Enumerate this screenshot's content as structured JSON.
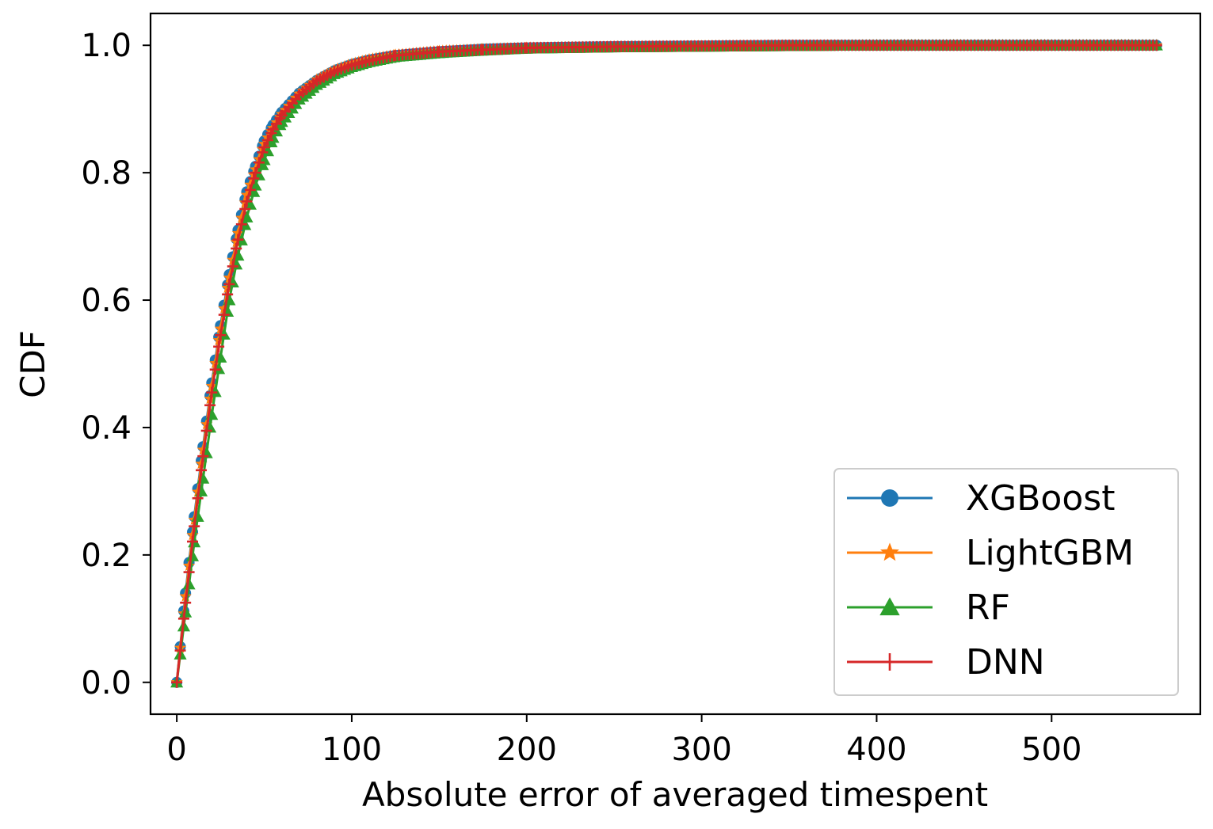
{
  "chart_data": {
    "type": "line",
    "xlabel": "Absolute error of averaged timespent",
    "ylabel": "CDF",
    "xlim": [
      -15,
      585
    ],
    "ylim": [
      -0.05,
      1.05
    ],
    "xticks": [
      0,
      100,
      200,
      300,
      400,
      500
    ],
    "xtick_labels": [
      "0",
      "100",
      "200",
      "300",
      "400",
      "500"
    ],
    "yticks": [
      0.0,
      0.2,
      0.4,
      0.6,
      0.8,
      1.0
    ],
    "ytick_labels": [
      "0.0",
      "0.2",
      "0.4",
      "0.6",
      "0.8",
      "1.0"
    ],
    "grid": false,
    "legend": "lower-right",
    "series": [
      {
        "name": "XGBoost",
        "color": "#1f77b4",
        "marker": "circle",
        "x": [
          0,
          5,
          10,
          15,
          20,
          25,
          30,
          35,
          40,
          45,
          50,
          55,
          60,
          70,
          80,
          90,
          100,
          110,
          125,
          150,
          175,
          200,
          250,
          300,
          350,
          400,
          450,
          500,
          560
        ],
        "y": [
          0.0,
          0.14,
          0.26,
          0.37,
          0.47,
          0.56,
          0.64,
          0.71,
          0.77,
          0.81,
          0.85,
          0.875,
          0.895,
          0.925,
          0.945,
          0.96,
          0.97,
          0.977,
          0.984,
          0.99,
          0.994,
          0.996,
          0.998,
          0.999,
          1.0,
          1.0,
          1.0,
          1.0,
          1.0
        ]
      },
      {
        "name": "LightGBM",
        "color": "#ff7f0e",
        "marker": "star",
        "x": [
          0,
          5,
          10,
          15,
          20,
          25,
          30,
          35,
          40,
          45,
          50,
          55,
          60,
          70,
          80,
          90,
          100,
          110,
          125,
          150,
          175,
          200,
          250,
          300,
          350,
          400,
          450,
          500,
          560
        ],
        "y": [
          0.0,
          0.135,
          0.255,
          0.365,
          0.465,
          0.555,
          0.635,
          0.705,
          0.765,
          0.805,
          0.845,
          0.87,
          0.892,
          0.924,
          0.946,
          0.961,
          0.971,
          0.978,
          0.985,
          0.991,
          0.994,
          0.996,
          0.998,
          0.999,
          1.0,
          1.0,
          1.0,
          1.0,
          1.0
        ]
      },
      {
        "name": "RF",
        "color": "#2ca02c",
        "marker": "triangle",
        "x": [
          0,
          5,
          10,
          15,
          20,
          25,
          30,
          35,
          40,
          45,
          50,
          55,
          60,
          70,
          80,
          90,
          100,
          110,
          125,
          150,
          175,
          200,
          250,
          300,
          350,
          400,
          450,
          500,
          560
        ],
        "y": [
          0.0,
          0.11,
          0.22,
          0.32,
          0.42,
          0.51,
          0.6,
          0.67,
          0.73,
          0.78,
          0.82,
          0.855,
          0.88,
          0.915,
          0.938,
          0.955,
          0.966,
          0.974,
          0.982,
          0.988,
          0.992,
          0.995,
          0.997,
          0.998,
          0.999,
          1.0,
          1.0,
          1.0,
          1.0
        ]
      },
      {
        "name": "DNN",
        "color": "#d62728",
        "marker": "plus",
        "x": [
          0,
          5,
          10,
          15,
          20,
          25,
          30,
          35,
          40,
          45,
          50,
          55,
          60,
          70,
          80,
          90,
          100,
          110,
          125,
          150,
          175,
          200,
          250,
          300,
          350,
          400,
          450,
          500,
          560
        ],
        "y": [
          0.0,
          0.125,
          0.245,
          0.355,
          0.455,
          0.545,
          0.625,
          0.695,
          0.755,
          0.8,
          0.84,
          0.868,
          0.89,
          0.922,
          0.944,
          0.959,
          0.969,
          0.976,
          0.984,
          0.99,
          0.993,
          0.996,
          0.998,
          0.999,
          1.0,
          1.0,
          1.0,
          1.0,
          1.0
        ]
      }
    ]
  }
}
